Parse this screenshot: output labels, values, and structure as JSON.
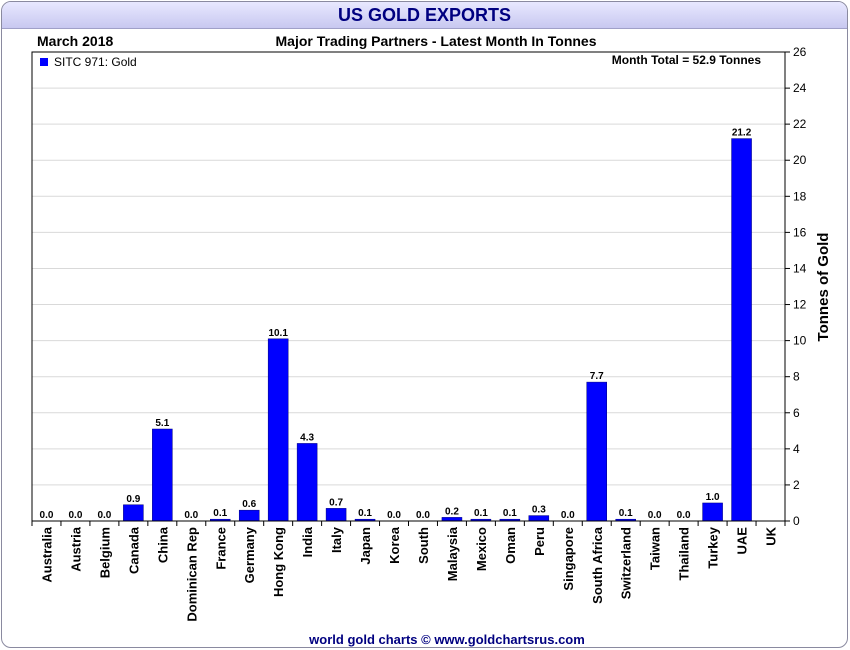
{
  "header": {
    "title": "US GOLD EXPORTS",
    "period": "March 2018",
    "subtitle": "Major Trading Partners - Latest Month In Tonnes",
    "month_total": "Month Total = 52.9 Tonnes"
  },
  "footer": {
    "credit": "world gold charts © www.goldchartsrus.com"
  },
  "colors": {
    "bar": "#0000ff",
    "title": "#000080",
    "grid": "#d9d9d9"
  },
  "chart_data": {
    "type": "bar",
    "title": "US GOLD EXPORTS",
    "subtitle": "Major Trading Partners - Latest Month In Tonnes",
    "ylabel": "Tonnes of Gold",
    "ylim": [
      0,
      26
    ],
    "yticks": [
      0,
      2,
      4,
      6,
      8,
      10,
      12,
      14,
      16,
      18,
      20,
      22,
      24,
      26
    ],
    "legend": {
      "label": "SITC 971: Gold",
      "position": "top-left"
    },
    "categories": [
      "Australia",
      "Austria",
      "Belgium",
      "Canada",
      "China",
      "Dominican Rep",
      "France",
      "Germany",
      "Hong Kong",
      "India",
      "Italy",
      "Japan",
      "Korea",
      "South",
      "Malaysia",
      "Mexico",
      "Oman",
      "Peru",
      "Singapore",
      "South Africa",
      "Switzerland",
      "Taiwan",
      "Thailand",
      "Turkey",
      "UAE",
      "UK"
    ],
    "values": [
      0.0,
      0.0,
      0.0,
      0.9,
      5.1,
      0.0,
      0.1,
      0.6,
      10.1,
      4.3,
      0.7,
      0.1,
      0.0,
      0.0,
      0.2,
      0.1,
      0.1,
      0.3,
      0.0,
      7.7,
      0.1,
      0.0,
      0.0,
      1.0,
      21.2,
      null
    ],
    "data_labels": [
      "0.0",
      "0.0",
      "0.0",
      "0.9",
      "5.1",
      "0.0",
      "0.1",
      "0.6",
      "10.1",
      "4.3",
      "0.7",
      "0.1",
      "0.0",
      "0.0",
      "0.2",
      "0.1",
      "0.1",
      "0.3",
      "0.0",
      "7.7",
      "0.1",
      "0.0",
      "0.0",
      "1.0",
      "21.2",
      ""
    ]
  }
}
